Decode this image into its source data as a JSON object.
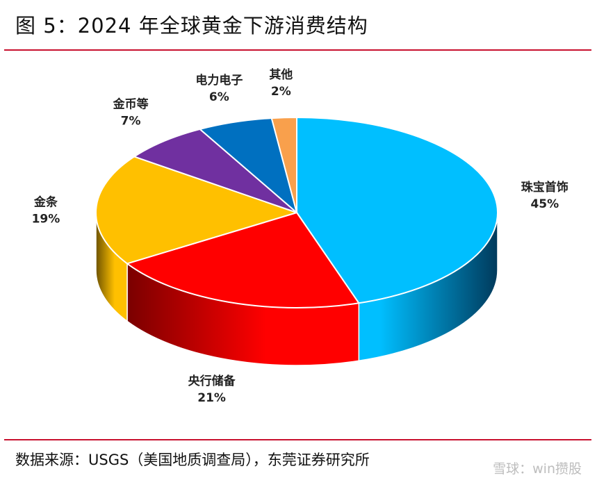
{
  "figure": {
    "title": "图 5：2024 年全球黄金下游消费结构",
    "source": "数据来源：USGS（美国地质调查局），东莞证券研究所",
    "watermark": "雪球：win攒股"
  },
  "chart_data": {
    "type": "pie",
    "style": "3d",
    "slices": [
      {
        "label": "珠宝首饰",
        "value": 45,
        "display": "45%",
        "color": "#00bfff",
        "dark": "#003a5c"
      },
      {
        "label": "央行储备",
        "value": 21,
        "display": "21%",
        "color": "#ff0000",
        "dark": "#7a0000"
      },
      {
        "label": "金条",
        "value": 19,
        "display": "19%",
        "color": "#ffc000",
        "dark": "#6e5300"
      },
      {
        "label": "金币等",
        "value": 7,
        "display": "7%",
        "color": "#7030a0",
        "dark": "#35124f"
      },
      {
        "label": "电力电子",
        "value": 6,
        "display": "6%",
        "color": "#0070c0",
        "dark": "#00305a"
      },
      {
        "label": "其他",
        "value": 2,
        "display": "2%",
        "color": "#f9a04c",
        "dark": "#8a4d12"
      }
    ]
  }
}
